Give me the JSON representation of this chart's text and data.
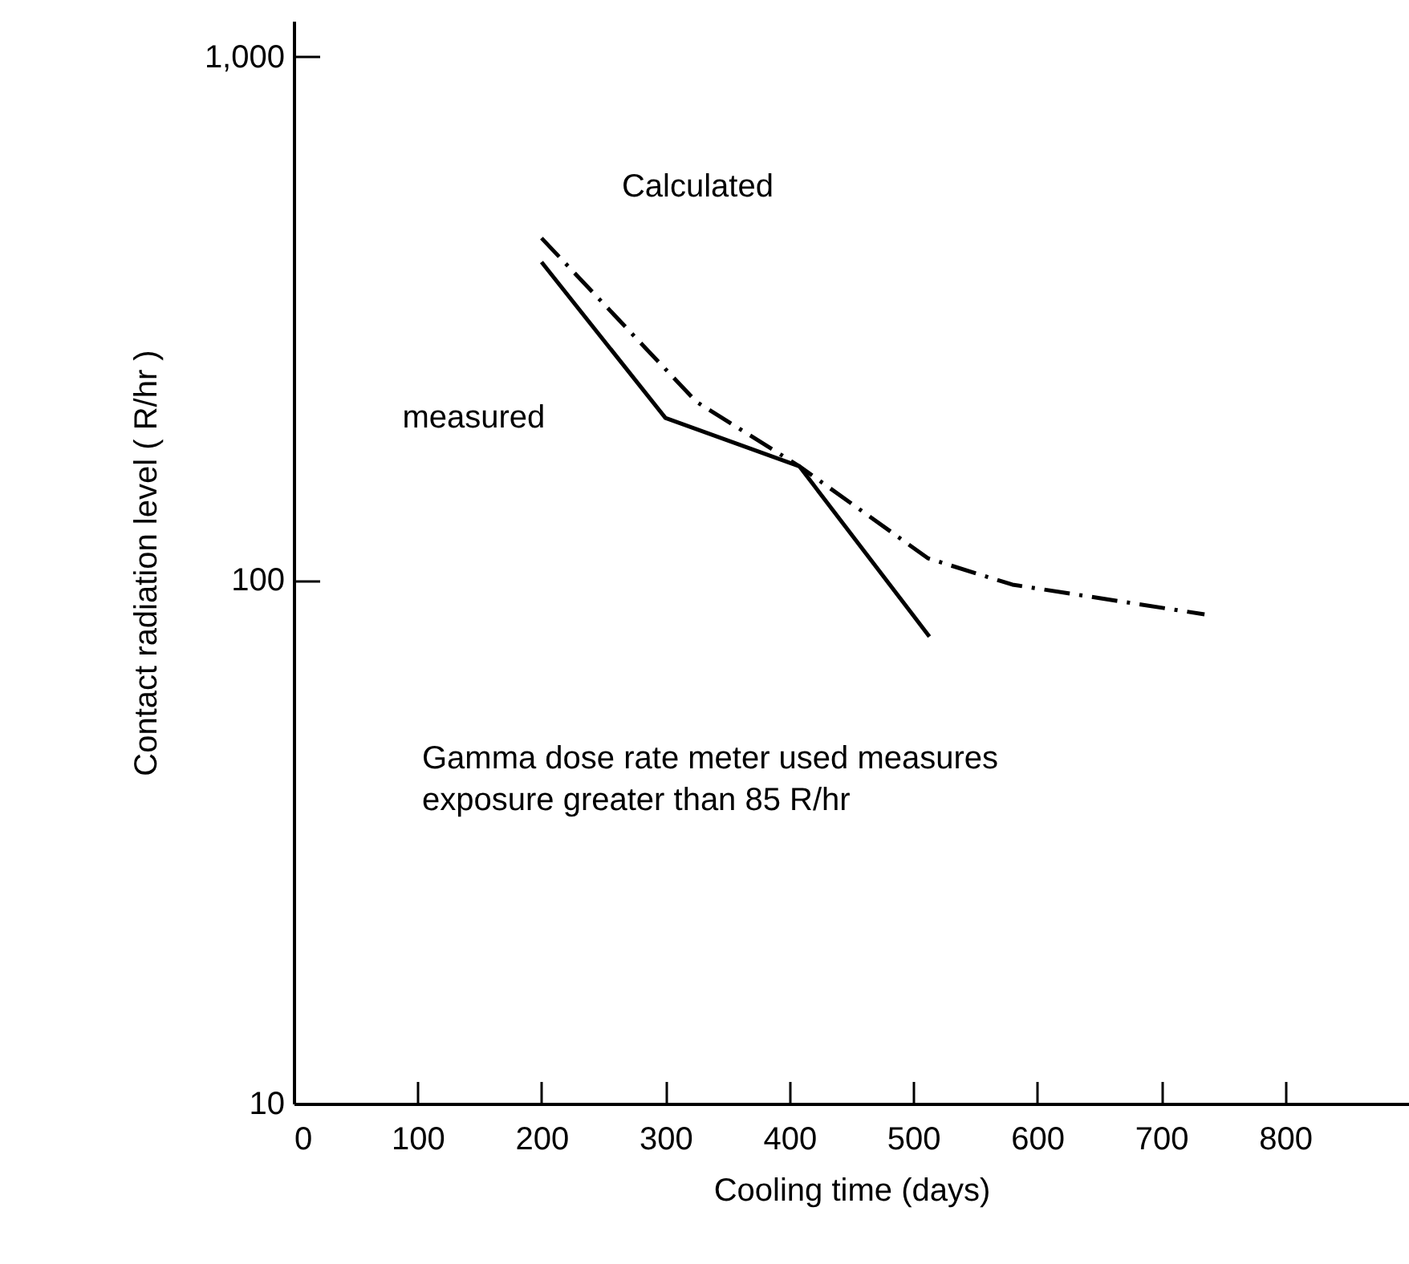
{
  "chart_data": {
    "type": "line",
    "xlabel": "Cooling  time  (days)",
    "ylabel": "Contact   radiation  level    ( R/hr )",
    "log": "y",
    "marker": "none",
    "xlim": [
      0,
      900
    ],
    "xticks": [
      0,
      100,
      200,
      300,
      400,
      500,
      600,
      700,
      800
    ],
    "ylim": [
      10,
      1170
    ],
    "yticks": [
      10,
      100,
      {
        "value": 1000,
        "label": "1,000"
      }
    ],
    "series": [
      {
        "name": "Calculated",
        "color": "#000000",
        "line_style": "dashed",
        "x": [
          200,
          325,
          408,
          512,
          580,
          735
        ],
        "values": [
          450,
          219,
          165,
          110,
          98,
          86
        ]
      },
      {
        "name": "measured",
        "color": "#000000",
        "line_style": "solid",
        "x": [
          200,
          300,
          408,
          513
        ],
        "values": [
          405,
          204,
          165,
          78
        ]
      }
    ],
    "annotations": [
      "Gamma dose rate meter used measures\nexposure greater than  85 R/hr"
    ]
  }
}
